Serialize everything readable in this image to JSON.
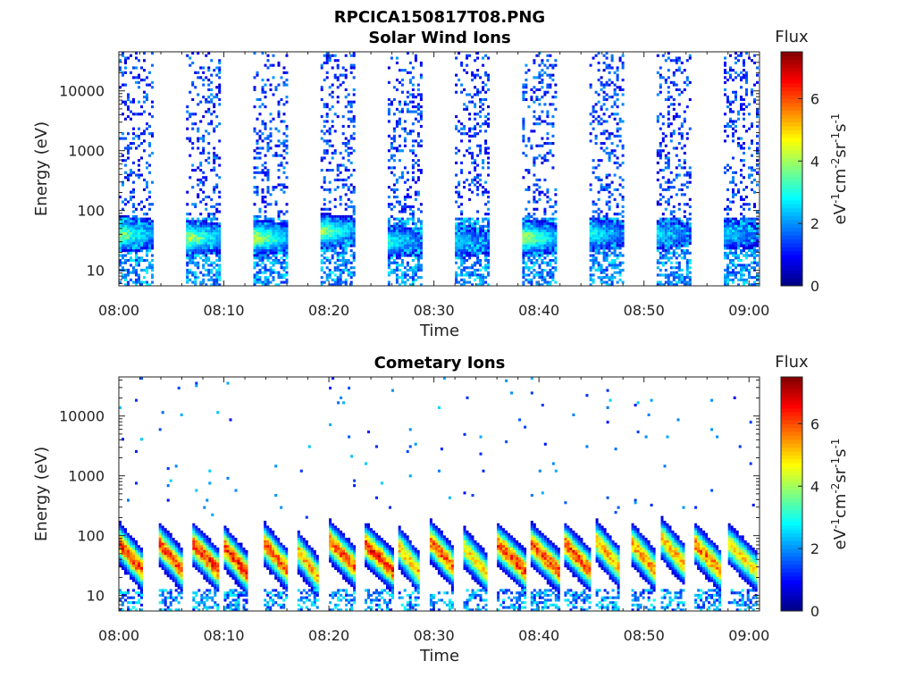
{
  "figure": {
    "filename": "RPCICA150817T08.PNG"
  },
  "chart_data": [
    {
      "type": "heatmap",
      "title": "Solar Wind Ions",
      "xlabel": "Time",
      "ylabel": "Energy (eV)",
      "x_ticks": [
        "08:00",
        "08:10",
        "08:20",
        "08:30",
        "08:40",
        "08:50",
        "09:00"
      ],
      "x_range_minutes": [
        0,
        61
      ],
      "y_scale": "log",
      "y_range": [
        5.5,
        45000
      ],
      "y_ticks": [
        10,
        100,
        1000,
        10000
      ],
      "y_tick_labels": [
        "10",
        "100",
        "1000",
        "10000"
      ],
      "colorbar": {
        "title": "Flux",
        "label": "eV-1cm-2sr-1s-1",
        "range": [
          0,
          7.5
        ],
        "ticks": [
          0,
          2,
          4,
          6
        ]
      },
      "colormap": [
        "#00007f",
        "#0000ff",
        "#007fff",
        "#00ffff",
        "#7fff7f",
        "#ffff00",
        "#ff7f00",
        "#ff0000",
        "#7f0000"
      ],
      "bursts": [
        {
          "start_min": 0.0,
          "end_min": 3.2,
          "peak_energy_ev": 40,
          "peak_flux": 4.5,
          "background_flux": 1.5
        },
        {
          "start_min": 6.4,
          "end_min": 9.6,
          "peak_energy_ev": 35,
          "peak_flux": 5.0,
          "background_flux": 1.5
        },
        {
          "start_min": 12.8,
          "end_min": 16.0,
          "peak_energy_ev": 35,
          "peak_flux": 5.0,
          "background_flux": 1.5
        },
        {
          "start_min": 19.2,
          "end_min": 22.4,
          "peak_energy_ev": 45,
          "peak_flux": 4.5,
          "background_flux": 1.5
        },
        {
          "start_min": 25.6,
          "end_min": 28.8,
          "peak_energy_ev": 30,
          "peak_flux": 3.5,
          "background_flux": 1.5
        },
        {
          "start_min": 32.0,
          "end_min": 35.2,
          "peak_energy_ev": 30,
          "peak_flux": 3.0,
          "background_flux": 1.5
        },
        {
          "start_min": 38.4,
          "end_min": 41.6,
          "peak_energy_ev": 35,
          "peak_flux": 5.0,
          "background_flux": 1.5
        },
        {
          "start_min": 44.8,
          "end_min": 48.0,
          "peak_energy_ev": 40,
          "peak_flux": 3.5,
          "background_flux": 1.5
        },
        {
          "start_min": 51.2,
          "end_min": 54.4,
          "peak_energy_ev": 40,
          "peak_flux": 3.0,
          "background_flux": 1.5
        },
        {
          "start_min": 57.6,
          "end_min": 60.8,
          "peak_energy_ev": 40,
          "peak_flux": 3.0,
          "background_flux": 1.5
        }
      ]
    },
    {
      "type": "heatmap",
      "title": "Cometary Ions",
      "xlabel": "Time",
      "ylabel": "Energy (eV)",
      "x_ticks": [
        "08:00",
        "08:10",
        "08:20",
        "08:30",
        "08:40",
        "08:50",
        "09:00"
      ],
      "x_range_minutes": [
        0,
        61
      ],
      "y_scale": "log",
      "y_range": [
        5.5,
        45000
      ],
      "y_ticks": [
        10,
        100,
        1000,
        10000
      ],
      "y_tick_labels": [
        "10",
        "100",
        "1000",
        "10000"
      ],
      "colorbar": {
        "title": "Flux",
        "label": "eV-1cm-2sr-1s-1",
        "range": [
          0,
          7.5
        ],
        "ticks": [
          0,
          2,
          4,
          6
        ]
      },
      "colormap": [
        "#00007f",
        "#0000ff",
        "#007fff",
        "#00ffff",
        "#7fff7f",
        "#ffff00",
        "#ff7f00",
        "#ff0000",
        "#7f0000"
      ],
      "bursts": [
        {
          "start_min": 0.0,
          "end_min": 2.2,
          "peak_energy_ev": 40,
          "peak_flux": 7.0
        },
        {
          "start_min": 3.8,
          "end_min": 6.0,
          "peak_energy_ev": 40,
          "peak_flux": 7.0
        },
        {
          "start_min": 7.0,
          "end_min": 9.4,
          "peak_energy_ev": 40,
          "peak_flux": 7.2
        },
        {
          "start_min": 10.0,
          "end_min": 12.2,
          "peak_energy_ev": 35,
          "peak_flux": 7.2
        },
        {
          "start_min": 13.8,
          "end_min": 16.0,
          "peak_energy_ev": 40,
          "peak_flux": 6.8
        },
        {
          "start_min": 17.0,
          "end_min": 19.0,
          "peak_energy_ev": 30,
          "peak_flux": 6.0
        },
        {
          "start_min": 20.0,
          "end_min": 22.4,
          "peak_energy_ev": 45,
          "peak_flux": 6.8
        },
        {
          "start_min": 23.4,
          "end_min": 26.0,
          "peak_energy_ev": 40,
          "peak_flux": 7.2
        },
        {
          "start_min": 26.6,
          "end_min": 28.6,
          "peak_energy_ev": 35,
          "peak_flux": 6.0
        },
        {
          "start_min": 29.6,
          "end_min": 31.8,
          "peak_energy_ev": 45,
          "peak_flux": 6.8
        },
        {
          "start_min": 32.8,
          "end_min": 35.0,
          "peak_energy_ev": 35,
          "peak_flux": 5.5
        },
        {
          "start_min": 36.0,
          "end_min": 38.6,
          "peak_energy_ev": 40,
          "peak_flux": 7.0
        },
        {
          "start_min": 39.2,
          "end_min": 41.8,
          "peak_energy_ev": 40,
          "peak_flux": 7.0
        },
        {
          "start_min": 42.4,
          "end_min": 44.8,
          "peak_energy_ev": 40,
          "peak_flux": 7.0
        },
        {
          "start_min": 45.4,
          "end_min": 47.6,
          "peak_energy_ev": 45,
          "peak_flux": 6.0
        },
        {
          "start_min": 48.8,
          "end_min": 51.0,
          "peak_energy_ev": 40,
          "peak_flux": 6.2
        },
        {
          "start_min": 51.6,
          "end_min": 53.8,
          "peak_energy_ev": 50,
          "peak_flux": 6.0
        },
        {
          "start_min": 54.8,
          "end_min": 57.2,
          "peak_energy_ev": 40,
          "peak_flux": 6.5
        },
        {
          "start_min": 58.0,
          "end_min": 60.6,
          "peak_energy_ev": 40,
          "peak_flux": 5.5
        }
      ]
    }
  ]
}
